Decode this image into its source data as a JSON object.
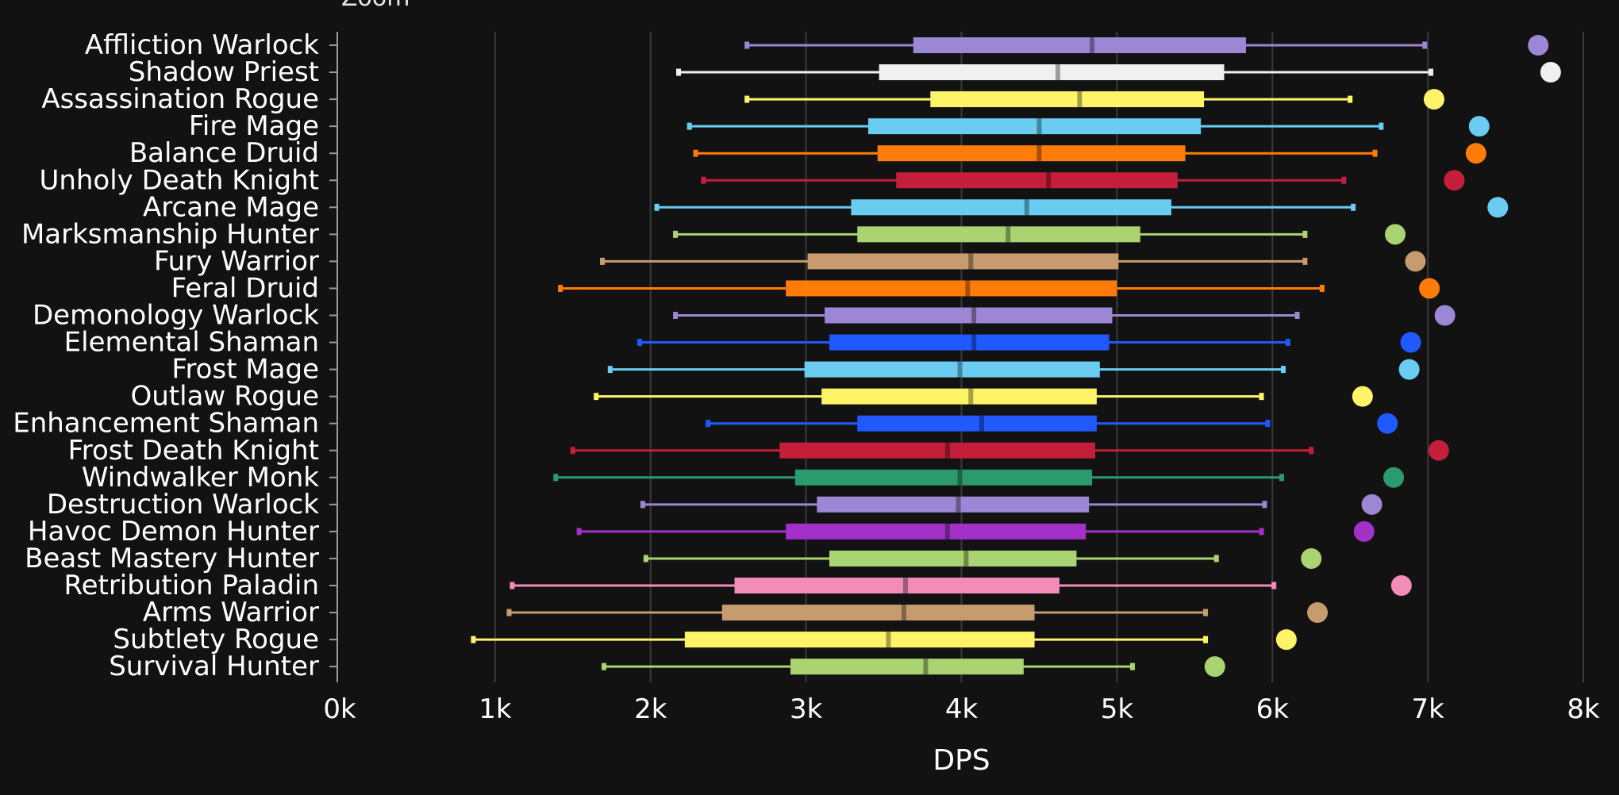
{
  "zoom_label": "Zoom",
  "chart_data": {
    "type": "boxplot",
    "orientation": "horizontal",
    "xlabel": "DPS",
    "xlim": [
      0,
      8000
    ],
    "x_ticks": [
      0,
      1000,
      2000,
      3000,
      4000,
      5000,
      6000,
      7000,
      8000
    ],
    "x_tick_labels": [
      "0k",
      "1k",
      "2k",
      "3k",
      "4k",
      "5k",
      "6k",
      "7k",
      "8k"
    ],
    "grid": true,
    "series": [
      {
        "name": "Affliction Warlock",
        "color": "#9b87d3",
        "min": 2620,
        "q1": 3690,
        "median": 4840,
        "q3": 5830,
        "max": 6980,
        "max_point": 7710
      },
      {
        "name": "Shadow Priest",
        "color": "#f0f0f0",
        "min": 2180,
        "q1": 3470,
        "median": 4620,
        "q3": 5690,
        "max": 7020,
        "max_point": 7790
      },
      {
        "name": "Assassination Rogue",
        "color": "#fff468",
        "min": 2620,
        "q1": 3800,
        "median": 4760,
        "q3": 5560,
        "max": 6500,
        "max_point": 7040
      },
      {
        "name": "Fire Mage",
        "color": "#69ccf0",
        "min": 2250,
        "q1": 3400,
        "median": 4500,
        "q3": 5540,
        "max": 6700,
        "max_point": 7330
      },
      {
        "name": "Balance Druid",
        "color": "#ff7c0a",
        "min": 2290,
        "q1": 3460,
        "median": 4500,
        "q3": 5440,
        "max": 6660,
        "max_point": 7310
      },
      {
        "name": "Unholy Death Knight",
        "color": "#c41e3a",
        "min": 2340,
        "q1": 3580,
        "median": 4560,
        "q3": 5390,
        "max": 6460,
        "max_point": 7170
      },
      {
        "name": "Arcane Mage",
        "color": "#69ccf0",
        "min": 2040,
        "q1": 3290,
        "median": 4420,
        "q3": 5350,
        "max": 6520,
        "max_point": 7450
      },
      {
        "name": "Marksmanship Hunter",
        "color": "#aad372",
        "min": 2160,
        "q1": 3330,
        "median": 4300,
        "q3": 5150,
        "max": 6210,
        "max_point": 6790
      },
      {
        "name": "Fury Warrior",
        "color": "#c69b6d",
        "min": 1690,
        "q1": 3010,
        "median": 4060,
        "q3": 5010,
        "max": 6210,
        "max_point": 6920
      },
      {
        "name": "Feral Druid",
        "color": "#ff7c0a",
        "min": 1420,
        "q1": 2870,
        "median": 4040,
        "q3": 5000,
        "max": 6320,
        "max_point": 7010
      },
      {
        "name": "Demonology Warlock",
        "color": "#9b87d3",
        "min": 2160,
        "q1": 3120,
        "median": 4080,
        "q3": 4970,
        "max": 6160,
        "max_point": 7110
      },
      {
        "name": "Elemental Shaman",
        "color": "#1f59ff",
        "min": 1930,
        "q1": 3150,
        "median": 4080,
        "q3": 4950,
        "max": 6100,
        "max_point": 6890
      },
      {
        "name": "Frost Mage",
        "color": "#69ccf0",
        "min": 1740,
        "q1": 2990,
        "median": 3990,
        "q3": 4890,
        "max": 6070,
        "max_point": 6880
      },
      {
        "name": "Outlaw Rogue",
        "color": "#fff468",
        "min": 1650,
        "q1": 3100,
        "median": 4060,
        "q3": 4870,
        "max": 5930,
        "max_point": 6580
      },
      {
        "name": "Enhancement Shaman",
        "color": "#1f59ff",
        "min": 2370,
        "q1": 3330,
        "median": 4130,
        "q3": 4870,
        "max": 5970,
        "max_point": 6740
      },
      {
        "name": "Frost Death Knight",
        "color": "#c41e3a",
        "min": 1500,
        "q1": 2830,
        "median": 3910,
        "q3": 4860,
        "max": 6250,
        "max_point": 7070
      },
      {
        "name": "Windwalker Monk",
        "color": "#2a9b6e",
        "min": 1390,
        "q1": 2930,
        "median": 3990,
        "q3": 4840,
        "max": 6060,
        "max_point": 6780
      },
      {
        "name": "Destruction Warlock",
        "color": "#9b87d3",
        "min": 1950,
        "q1": 3070,
        "median": 3980,
        "q3": 4820,
        "max": 5950,
        "max_point": 6640
      },
      {
        "name": "Havoc Demon Hunter",
        "color": "#a330c9",
        "min": 1540,
        "q1": 2870,
        "median": 3910,
        "q3": 4800,
        "max": 5930,
        "max_point": 6590
      },
      {
        "name": "Beast Mastery Hunter",
        "color": "#aad372",
        "min": 1970,
        "q1": 3150,
        "median": 4030,
        "q3": 4740,
        "max": 5640,
        "max_point": 6250
      },
      {
        "name": "Retribution Paladin",
        "color": "#f48cba",
        "min": 1110,
        "q1": 2540,
        "median": 3640,
        "q3": 4630,
        "max": 6010,
        "max_point": 6830
      },
      {
        "name": "Arms Warrior",
        "color": "#c69b6d",
        "min": 1090,
        "q1": 2460,
        "median": 3630,
        "q3": 4470,
        "max": 5570,
        "max_point": 6290
      },
      {
        "name": "Subtlety Rogue",
        "color": "#fff468",
        "min": 860,
        "q1": 2220,
        "median": 3530,
        "q3": 4470,
        "max": 5570,
        "max_point": 6090
      },
      {
        "name": "Survival Hunter",
        "color": "#aad372",
        "min": 1700,
        "q1": 2900,
        "median": 3770,
        "q3": 4400,
        "max": 5100,
        "max_point": 5630
      }
    ]
  }
}
